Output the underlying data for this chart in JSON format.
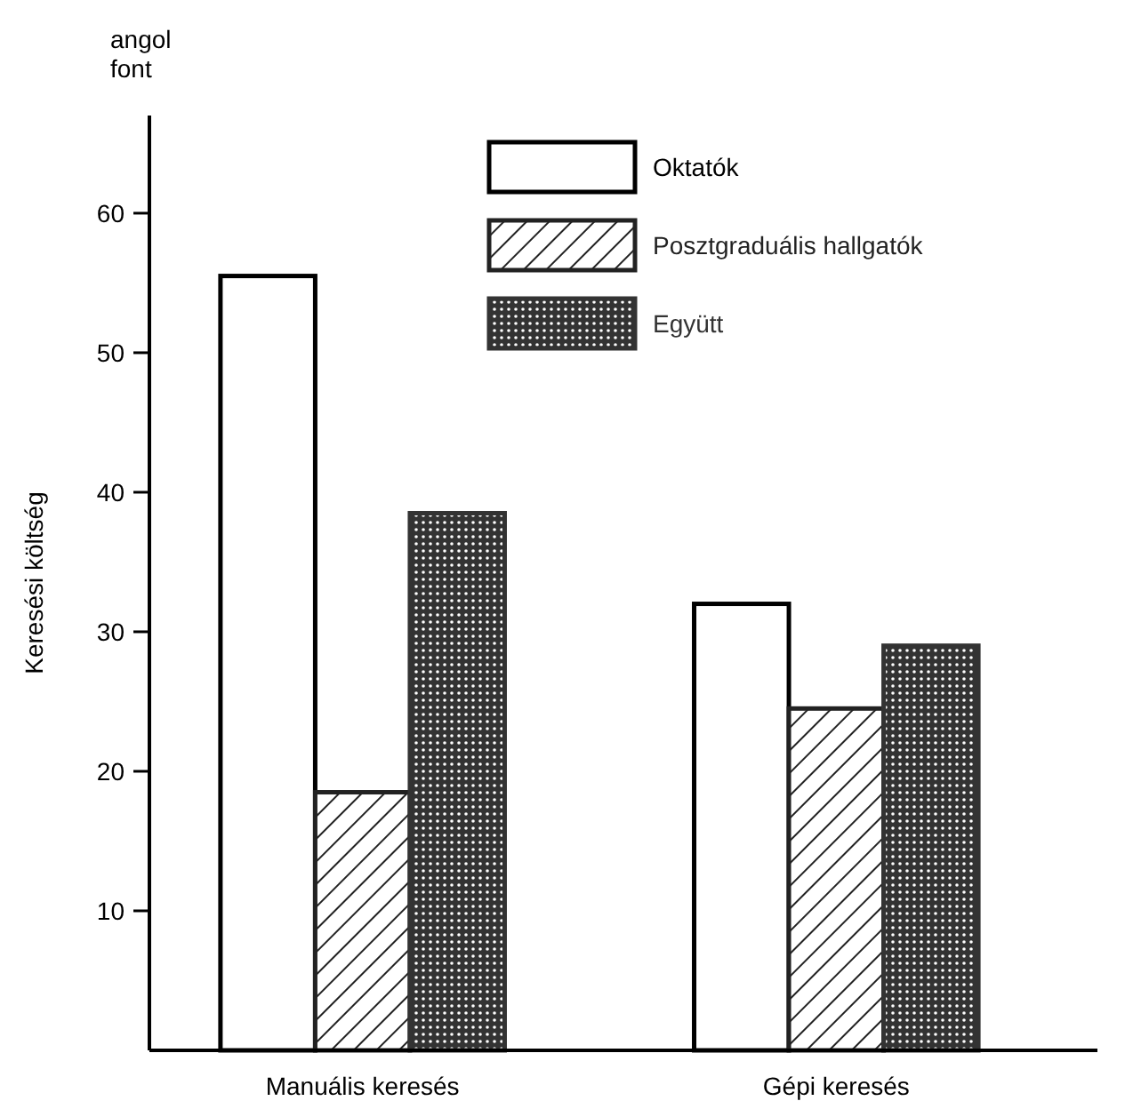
{
  "chart_data": {
    "type": "bar",
    "ylabel": "Keresési költség",
    "annotations": [
      "angol font"
    ],
    "categories": [
      "Manuális keresés",
      "Gépi keresés"
    ],
    "series": [
      {
        "name": "Oktatók",
        "color": "#000000",
        "values": [
          55.5,
          32
        ]
      },
      {
        "name": "Posztgraduális hallgatók",
        "color": "#222222",
        "values": [
          18.5,
          24.5
        ]
      },
      {
        "name": "Együtt",
        "color": "#333333",
        "values": [
          38.5,
          29
        ]
      }
    ],
    "ylim": [
      0,
      67
    ],
    "yticks": [
      10,
      20,
      30,
      40,
      50,
      60
    ],
    "legend": "top right",
    "grid": false
  }
}
